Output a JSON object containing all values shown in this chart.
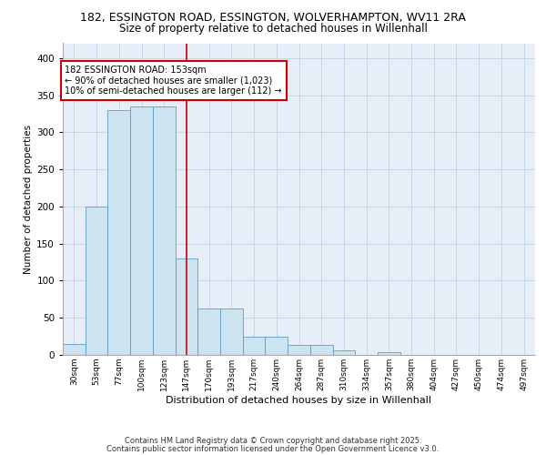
{
  "title_line1": "182, ESSINGTON ROAD, ESSINGTON, WOLVERHAMPTON, WV11 2RA",
  "title_line2": "Size of property relative to detached houses in Willenhall",
  "xlabel": "Distribution of detached houses by size in Willenhall",
  "ylabel": "Number of detached properties",
  "categories": [
    "30sqm",
    "53sqm",
    "77sqm",
    "100sqm",
    "123sqm",
    "147sqm",
    "170sqm",
    "193sqm",
    "217sqm",
    "240sqm",
    "264sqm",
    "287sqm",
    "310sqm",
    "334sqm",
    "357sqm",
    "380sqm",
    "404sqm",
    "427sqm",
    "450sqm",
    "474sqm",
    "497sqm"
  ],
  "values": [
    15,
    200,
    330,
    335,
    335,
    130,
    62,
    62,
    25,
    25,
    13,
    13,
    6,
    0,
    4,
    0,
    0,
    0,
    0,
    0,
    0
  ],
  "bar_color": "#cce4f0",
  "bar_edge_color": "#5b9dc9",
  "vline_x": 5.5,
  "vline_color": "#cc0000",
  "annotation_text": "182 ESSINGTON ROAD: 153sqm\n← 90% of detached houses are smaller (1,023)\n10% of semi-detached houses are larger (112) →",
  "annotation_box_color": "#cc0000",
  "ylim": [
    0,
    420
  ],
  "yticks": [
    0,
    50,
    100,
    150,
    200,
    250,
    300,
    350,
    400
  ],
  "grid_color": "#c8d4e8",
  "bg_color": "#e8eef8",
  "footer_line1": "Contains HM Land Registry data © Crown copyright and database right 2025.",
  "footer_line2": "Contains public sector information licensed under the Open Government Licence v3.0."
}
